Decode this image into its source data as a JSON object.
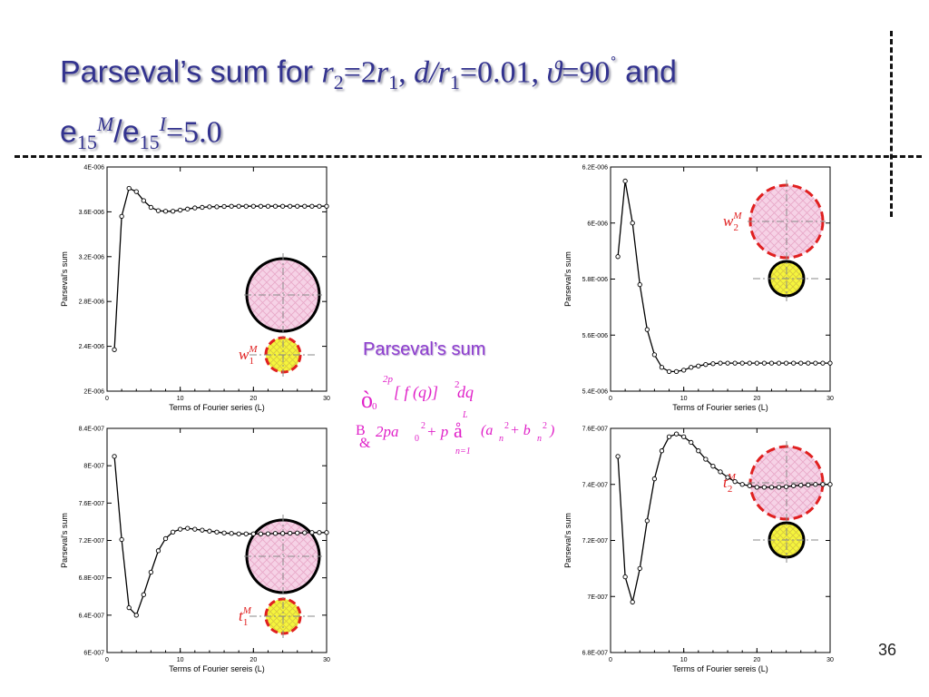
{
  "slide": {
    "title": {
      "prefix": "Parseval’s sum for ",
      "r": "r",
      "s2": "2",
      "eq1": "=2",
      "r1b": "r",
      "s1": "1",
      "comma1": ", ",
      "d": "d",
      "slash": "/",
      "r1c": "r",
      "s1b": "1",
      "eq2": "=0.01, ",
      "theta": "ϑ",
      "eq3": "=90",
      "deg": "˚",
      "and": " and",
      "e1": "e",
      "sub15a": "15",
      "supM": "M",
      "slash2": "/e",
      "sub15b": "15",
      "supI": "I",
      "eq4": "=5.0"
    },
    "center_label": "Parseval’s sum",
    "formula": {
      "integral": "ò",
      "lower0": "0",
      "upper2p": "2p",
      "body": "[ f (q)]",
      "sq": "2",
      "dq": " dq",
      "approx": "B",
      "amp": "&",
      "rhs1": "2pa",
      "sub0": "0",
      "sup2a": "2",
      "rhs2": " + p",
      "sum": "å",
      "upperL": "L",
      "lower_n1": "n=1",
      "rhs3": "(a",
      "subn1": "n",
      "sup2b": "2",
      "rhs4": " + b",
      "subn2": "n",
      "sup2c": "2",
      "rhs5": ")"
    },
    "page_number": "36"
  },
  "colors": {
    "title": "#33338f",
    "accent_label": "#8e3ecf",
    "formula": "#e020c8",
    "inset_red": "#e02020",
    "big_circle_fill": "#f6d2e6",
    "small_circle_fill": "#f5f53c"
  },
  "chart_data": [
    {
      "type": "line",
      "xlabel": "Terms of Fourier series (L)",
      "ylabel": "Parseval's sum",
      "xlim": [
        0,
        30
      ],
      "ylim": [
        2e-06,
        4e-06
      ],
      "xticks": [
        "0",
        "10",
        "20",
        "30"
      ],
      "yticks": [
        "2E-006",
        "2.4E-006",
        "2.8E-006",
        "3.2E-006",
        "3.6E-006",
        "4E-006"
      ],
      "x": [
        1,
        2,
        3,
        4,
        5,
        6,
        7,
        8,
        9,
        10,
        11,
        12,
        13,
        14,
        15,
        16,
        17,
        18,
        19,
        20,
        21,
        22,
        23,
        24,
        25,
        26,
        27,
        28,
        29,
        30
      ],
      "y": [
        2.37e-06,
        3.56e-06,
        3.81e-06,
        3.78e-06,
        3.7e-06,
        3.64e-06,
        3.61e-06,
        3.605e-06,
        3.605e-06,
        3.615e-06,
        3.625e-06,
        3.635e-06,
        3.64e-06,
        3.645e-06,
        3.645e-06,
        3.648e-06,
        3.65e-06,
        3.65e-06,
        3.65e-06,
        3.65e-06,
        3.65e-06,
        3.65e-06,
        3.65e-06,
        3.65e-06,
        3.65e-06,
        3.65e-06,
        3.65e-06,
        3.65e-06,
        3.65e-06,
        3.65e-06
      ],
      "inset": {
        "variable": "w",
        "sup": "M",
        "sub": "1",
        "highlight": "small"
      }
    },
    {
      "type": "line",
      "xlabel": "Terms of Fourier series (L)",
      "ylabel": "Parseval's sum",
      "xlim": [
        0,
        30
      ],
      "ylim": [
        5.4e-06,
        6.2e-06
      ],
      "xticks": [
        "0",
        "10",
        "20",
        "30"
      ],
      "yticks": [
        "5.4E-006",
        "5.6E-006",
        "5.8E-006",
        "6E-006",
        "6.2E-006"
      ],
      "x": [
        1,
        2,
        3,
        4,
        5,
        6,
        7,
        8,
        9,
        10,
        11,
        12,
        13,
        14,
        15,
        16,
        17,
        18,
        19,
        20,
        21,
        22,
        23,
        24,
        25,
        26,
        27,
        28,
        29,
        30
      ],
      "y": [
        5.88e-06,
        6.15e-06,
        6e-06,
        5.78e-06,
        5.62e-06,
        5.53e-06,
        5.485e-06,
        5.47e-06,
        5.47e-06,
        5.475e-06,
        5.485e-06,
        5.49e-06,
        5.495e-06,
        5.498e-06,
        5.5e-06,
        5.5e-06,
        5.5e-06,
        5.5e-06,
        5.5e-06,
        5.5e-06,
        5.5e-06,
        5.5e-06,
        5.5e-06,
        5.5e-06,
        5.5e-06,
        5.5e-06,
        5.5e-06,
        5.5e-06,
        5.5e-06,
        5.5e-06
      ],
      "inset": {
        "variable": "w",
        "sup": "M",
        "sub": "2",
        "highlight": "big"
      }
    },
    {
      "type": "line",
      "xlabel": "Terms of Fourier sereis (L)",
      "ylabel": "Parseval's sum",
      "xlim": [
        0,
        30
      ],
      "ylim": [
        6e-07,
        8.4e-07
      ],
      "xticks": [
        "0",
        "10",
        "20",
        "30"
      ],
      "yticks": [
        "6E-007",
        "6.4E-007",
        "6.8E-007",
        "7.2E-007",
        "7.6E-007",
        "8E-007",
        "8.4E-007"
      ],
      "x": [
        1,
        2,
        3,
        4,
        5,
        6,
        7,
        8,
        9,
        10,
        11,
        12,
        13,
        14,
        15,
        16,
        17,
        18,
        19,
        20,
        21,
        22,
        23,
        24,
        25,
        26,
        27,
        28,
        29,
        30
      ],
      "y": [
        8.1e-07,
        7.21e-07,
        6.48e-07,
        6.4e-07,
        6.62e-07,
        6.86e-07,
        7.09e-07,
        7.22e-07,
        7.29e-07,
        7.32e-07,
        7.33e-07,
        7.32e-07,
        7.31e-07,
        7.3e-07,
        7.29e-07,
        7.28e-07,
        7.275e-07,
        7.27e-07,
        7.27e-07,
        7.27e-07,
        7.27e-07,
        7.272e-07,
        7.275e-07,
        7.275e-07,
        7.278e-07,
        7.28e-07,
        7.282e-07,
        7.285e-07,
        7.285e-07,
        7.285e-07
      ],
      "inset": {
        "variable": "t",
        "sup": "M",
        "sub": "1",
        "highlight": "small"
      }
    },
    {
      "type": "line",
      "xlabel": "Terms of Fourier sereis (L)",
      "ylabel": "Parseval's sum",
      "xlim": [
        0,
        30
      ],
      "ylim": [
        6.8e-07,
        7.6e-07
      ],
      "xticks": [
        "0",
        "10",
        "20",
        "30"
      ],
      "yticks": [
        "6.8E-007",
        "7E-007",
        "7.2E-007",
        "7.4E-007",
        "7.6E-007"
      ],
      "x": [
        1,
        2,
        3,
        4,
        5,
        6,
        7,
        8,
        9,
        10,
        11,
        12,
        13,
        14,
        15,
        16,
        17,
        18,
        19,
        20,
        21,
        22,
        23,
        24,
        25,
        26,
        27,
        28,
        29,
        30
      ],
      "y": [
        7.5e-07,
        7.07e-07,
        6.98e-07,
        7.1e-07,
        7.27e-07,
        7.42e-07,
        7.52e-07,
        7.57e-07,
        7.58e-07,
        7.57e-07,
        7.55e-07,
        7.52e-07,
        7.49e-07,
        7.465e-07,
        7.445e-07,
        7.425e-07,
        7.41e-07,
        7.4e-07,
        7.395e-07,
        7.39e-07,
        7.39e-07,
        7.39e-07,
        7.39e-07,
        7.392e-07,
        7.395e-07,
        7.397e-07,
        7.398e-07,
        7.4e-07,
        7.4e-07,
        7.4e-07
      ],
      "inset": {
        "variable": "t",
        "sup": "M",
        "sub": "2",
        "highlight": "big"
      }
    }
  ]
}
